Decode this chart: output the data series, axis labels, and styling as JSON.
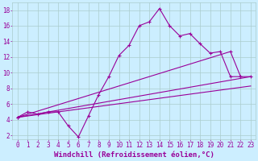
{
  "xlabel": "Windchill (Refroidissement éolien,°C)",
  "bg_color": "#cceeff",
  "grid_color": "#aacccc",
  "line_color": "#990099",
  "marker": "+",
  "xlim": [
    -0.5,
    23.5
  ],
  "ylim": [
    1.5,
    19.0
  ],
  "xticks": [
    0,
    1,
    2,
    3,
    4,
    5,
    6,
    7,
    8,
    9,
    10,
    11,
    12,
    13,
    14,
    15,
    16,
    17,
    18,
    19,
    20,
    21,
    22,
    23
  ],
  "yticks": [
    2,
    4,
    6,
    8,
    10,
    12,
    14,
    16,
    18
  ],
  "line1_x": [
    0,
    1,
    2,
    3,
    4,
    5,
    6,
    7,
    8,
    9,
    10,
    11,
    12,
    13,
    14,
    15,
    16,
    17,
    18,
    19,
    20,
    21,
    22
  ],
  "line1_y": [
    4.3,
    5.0,
    4.7,
    5.0,
    5.0,
    3.2,
    1.8,
    4.5,
    7.2,
    9.5,
    12.2,
    13.5,
    16.0,
    16.5,
    18.2,
    16.0,
    14.7,
    15.0,
    13.7,
    12.5,
    12.7,
    9.5,
    9.5
  ],
  "line2_x": [
    0,
    21,
    22,
    23
  ],
  "line2_y": [
    4.3,
    12.7,
    9.5,
    9.5
  ],
  "line3_x": [
    0,
    23
  ],
  "line3_y": [
    4.3,
    9.5
  ],
  "line4_x": [
    0,
    23
  ],
  "line4_y": [
    4.3,
    8.3
  ],
  "fontsize_tick": 5.5,
  "fontsize_label": 6.5
}
